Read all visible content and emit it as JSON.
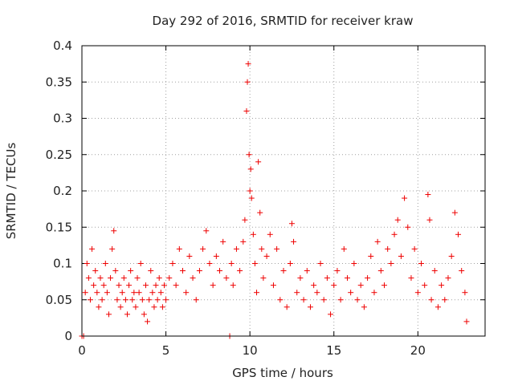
{
  "chart_data": {
    "type": "scatter",
    "title": "Day 292 of 2016, SRMTID for receiver kraw",
    "xlabel": "GPS time / hours",
    "ylabel": "SRMTID / TECUs",
    "xlim": [
      0,
      24
    ],
    "ylim": [
      0,
      0.4
    ],
    "xticks": [
      0,
      5,
      10,
      15,
      20
    ],
    "yticks": [
      0,
      0.05,
      0.1,
      0.15,
      0.2,
      0.25,
      0.3,
      0.35,
      0.4
    ],
    "xtick_labels": [
      "0",
      "5",
      "10",
      "15",
      "20"
    ],
    "ytick_labels": [
      "0",
      "0.05",
      "0.1",
      "0.15",
      "0.2",
      "0.25",
      "0.3",
      "0.35",
      "0.4"
    ],
    "grid": true,
    "marker": "+",
    "color": "#ee0000",
    "series": [
      {
        "name": "SRMTID",
        "points": [
          [
            0.0,
            0.0
          ],
          [
            0.1,
            0.0
          ],
          [
            0.2,
            0.06
          ],
          [
            0.3,
            0.1
          ],
          [
            0.4,
            0.08
          ],
          [
            0.5,
            0.05
          ],
          [
            0.6,
            0.12
          ],
          [
            0.7,
            0.07
          ],
          [
            0.8,
            0.09
          ],
          [
            0.9,
            0.06
          ],
          [
            1.0,
            0.04
          ],
          [
            1.1,
            0.08
          ],
          [
            1.2,
            0.05
          ],
          [
            1.3,
            0.07
          ],
          [
            1.4,
            0.1
          ],
          [
            1.5,
            0.06
          ],
          [
            1.6,
            0.03
          ],
          [
            1.7,
            0.08
          ],
          [
            1.8,
            0.12
          ],
          [
            1.9,
            0.145
          ],
          [
            2.0,
            0.09
          ],
          [
            2.1,
            0.05
          ],
          [
            2.2,
            0.07
          ],
          [
            2.3,
            0.04
          ],
          [
            2.4,
            0.06
          ],
          [
            2.5,
            0.08
          ],
          [
            2.6,
            0.05
          ],
          [
            2.7,
            0.03
          ],
          [
            2.8,
            0.07
          ],
          [
            2.9,
            0.09
          ],
          [
            3.0,
            0.05
          ],
          [
            3.1,
            0.06
          ],
          [
            3.2,
            0.04
          ],
          [
            3.3,
            0.08
          ],
          [
            3.4,
            0.06
          ],
          [
            3.5,
            0.1
          ],
          [
            3.6,
            0.05
          ],
          [
            3.7,
            0.03
          ],
          [
            3.8,
            0.07
          ],
          [
            3.9,
            0.02
          ],
          [
            4.0,
            0.05
          ],
          [
            4.1,
            0.09
          ],
          [
            4.2,
            0.06
          ],
          [
            4.3,
            0.04
          ],
          [
            4.4,
            0.07
          ],
          [
            4.5,
            0.05
          ],
          [
            4.6,
            0.08
          ],
          [
            4.7,
            0.06
          ],
          [
            4.8,
            0.04
          ],
          [
            4.9,
            0.07
          ],
          [
            5.0,
            0.05
          ],
          [
            5.2,
            0.08
          ],
          [
            5.4,
            0.1
          ],
          [
            5.6,
            0.07
          ],
          [
            5.8,
            0.12
          ],
          [
            6.0,
            0.09
          ],
          [
            6.2,
            0.06
          ],
          [
            6.4,
            0.11
          ],
          [
            6.6,
            0.08
          ],
          [
            6.8,
            0.05
          ],
          [
            7.0,
            0.09
          ],
          [
            7.2,
            0.12
          ],
          [
            7.4,
            0.145
          ],
          [
            7.6,
            0.1
          ],
          [
            7.8,
            0.07
          ],
          [
            8.0,
            0.11
          ],
          [
            8.2,
            0.09
          ],
          [
            8.4,
            0.13
          ],
          [
            8.6,
            0.08
          ],
          [
            8.8,
            0.0
          ],
          [
            8.9,
            0.1
          ],
          [
            9.0,
            0.07
          ],
          [
            9.2,
            0.12
          ],
          [
            9.4,
            0.09
          ],
          [
            9.6,
            0.13
          ],
          [
            9.7,
            0.16
          ],
          [
            9.8,
            0.31
          ],
          [
            9.85,
            0.35
          ],
          [
            9.9,
            0.375
          ],
          [
            9.95,
            0.25
          ],
          [
            10.0,
            0.2
          ],
          [
            10.05,
            0.23
          ],
          [
            10.1,
            0.19
          ],
          [
            10.2,
            0.14
          ],
          [
            10.3,
            0.1
          ],
          [
            10.4,
            0.06
          ],
          [
            10.5,
            0.24
          ],
          [
            10.6,
            0.17
          ],
          [
            10.7,
            0.12
          ],
          [
            10.8,
            0.08
          ],
          [
            11.0,
            0.11
          ],
          [
            11.2,
            0.14
          ],
          [
            11.4,
            0.07
          ],
          [
            11.6,
            0.12
          ],
          [
            11.8,
            0.05
          ],
          [
            12.0,
            0.09
          ],
          [
            12.2,
            0.04
          ],
          [
            12.4,
            0.1
          ],
          [
            12.5,
            0.155
          ],
          [
            12.6,
            0.13
          ],
          [
            12.8,
            0.06
          ],
          [
            13.0,
            0.08
          ],
          [
            13.2,
            0.05
          ],
          [
            13.4,
            0.09
          ],
          [
            13.6,
            0.04
          ],
          [
            13.8,
            0.07
          ],
          [
            14.0,
            0.06
          ],
          [
            14.2,
            0.1
          ],
          [
            14.4,
            0.05
          ],
          [
            14.6,
            0.08
          ],
          [
            14.8,
            0.03
          ],
          [
            15.0,
            0.07
          ],
          [
            15.2,
            0.09
          ],
          [
            15.4,
            0.05
          ],
          [
            15.6,
            0.12
          ],
          [
            15.8,
            0.08
          ],
          [
            16.0,
            0.06
          ],
          [
            16.2,
            0.1
          ],
          [
            16.4,
            0.05
          ],
          [
            16.6,
            0.07
          ],
          [
            16.8,
            0.04
          ],
          [
            17.0,
            0.08
          ],
          [
            17.2,
            0.11
          ],
          [
            17.4,
            0.06
          ],
          [
            17.6,
            0.13
          ],
          [
            17.8,
            0.09
          ],
          [
            18.0,
            0.07
          ],
          [
            18.2,
            0.12
          ],
          [
            18.4,
            0.1
          ],
          [
            18.6,
            0.14
          ],
          [
            18.8,
            0.16
          ],
          [
            19.0,
            0.11
          ],
          [
            19.2,
            0.19
          ],
          [
            19.4,
            0.15
          ],
          [
            19.6,
            0.08
          ],
          [
            19.8,
            0.12
          ],
          [
            20.0,
            0.06
          ],
          [
            20.2,
            0.1
          ],
          [
            20.4,
            0.07
          ],
          [
            20.6,
            0.195
          ],
          [
            20.7,
            0.16
          ],
          [
            20.8,
            0.05
          ],
          [
            21.0,
            0.09
          ],
          [
            21.2,
            0.04
          ],
          [
            21.4,
            0.07
          ],
          [
            21.6,
            0.05
          ],
          [
            21.8,
            0.08
          ],
          [
            22.0,
            0.11
          ],
          [
            22.2,
            0.17
          ],
          [
            22.4,
            0.14
          ],
          [
            22.6,
            0.09
          ],
          [
            22.8,
            0.06
          ],
          [
            22.9,
            0.02
          ]
        ]
      }
    ]
  }
}
